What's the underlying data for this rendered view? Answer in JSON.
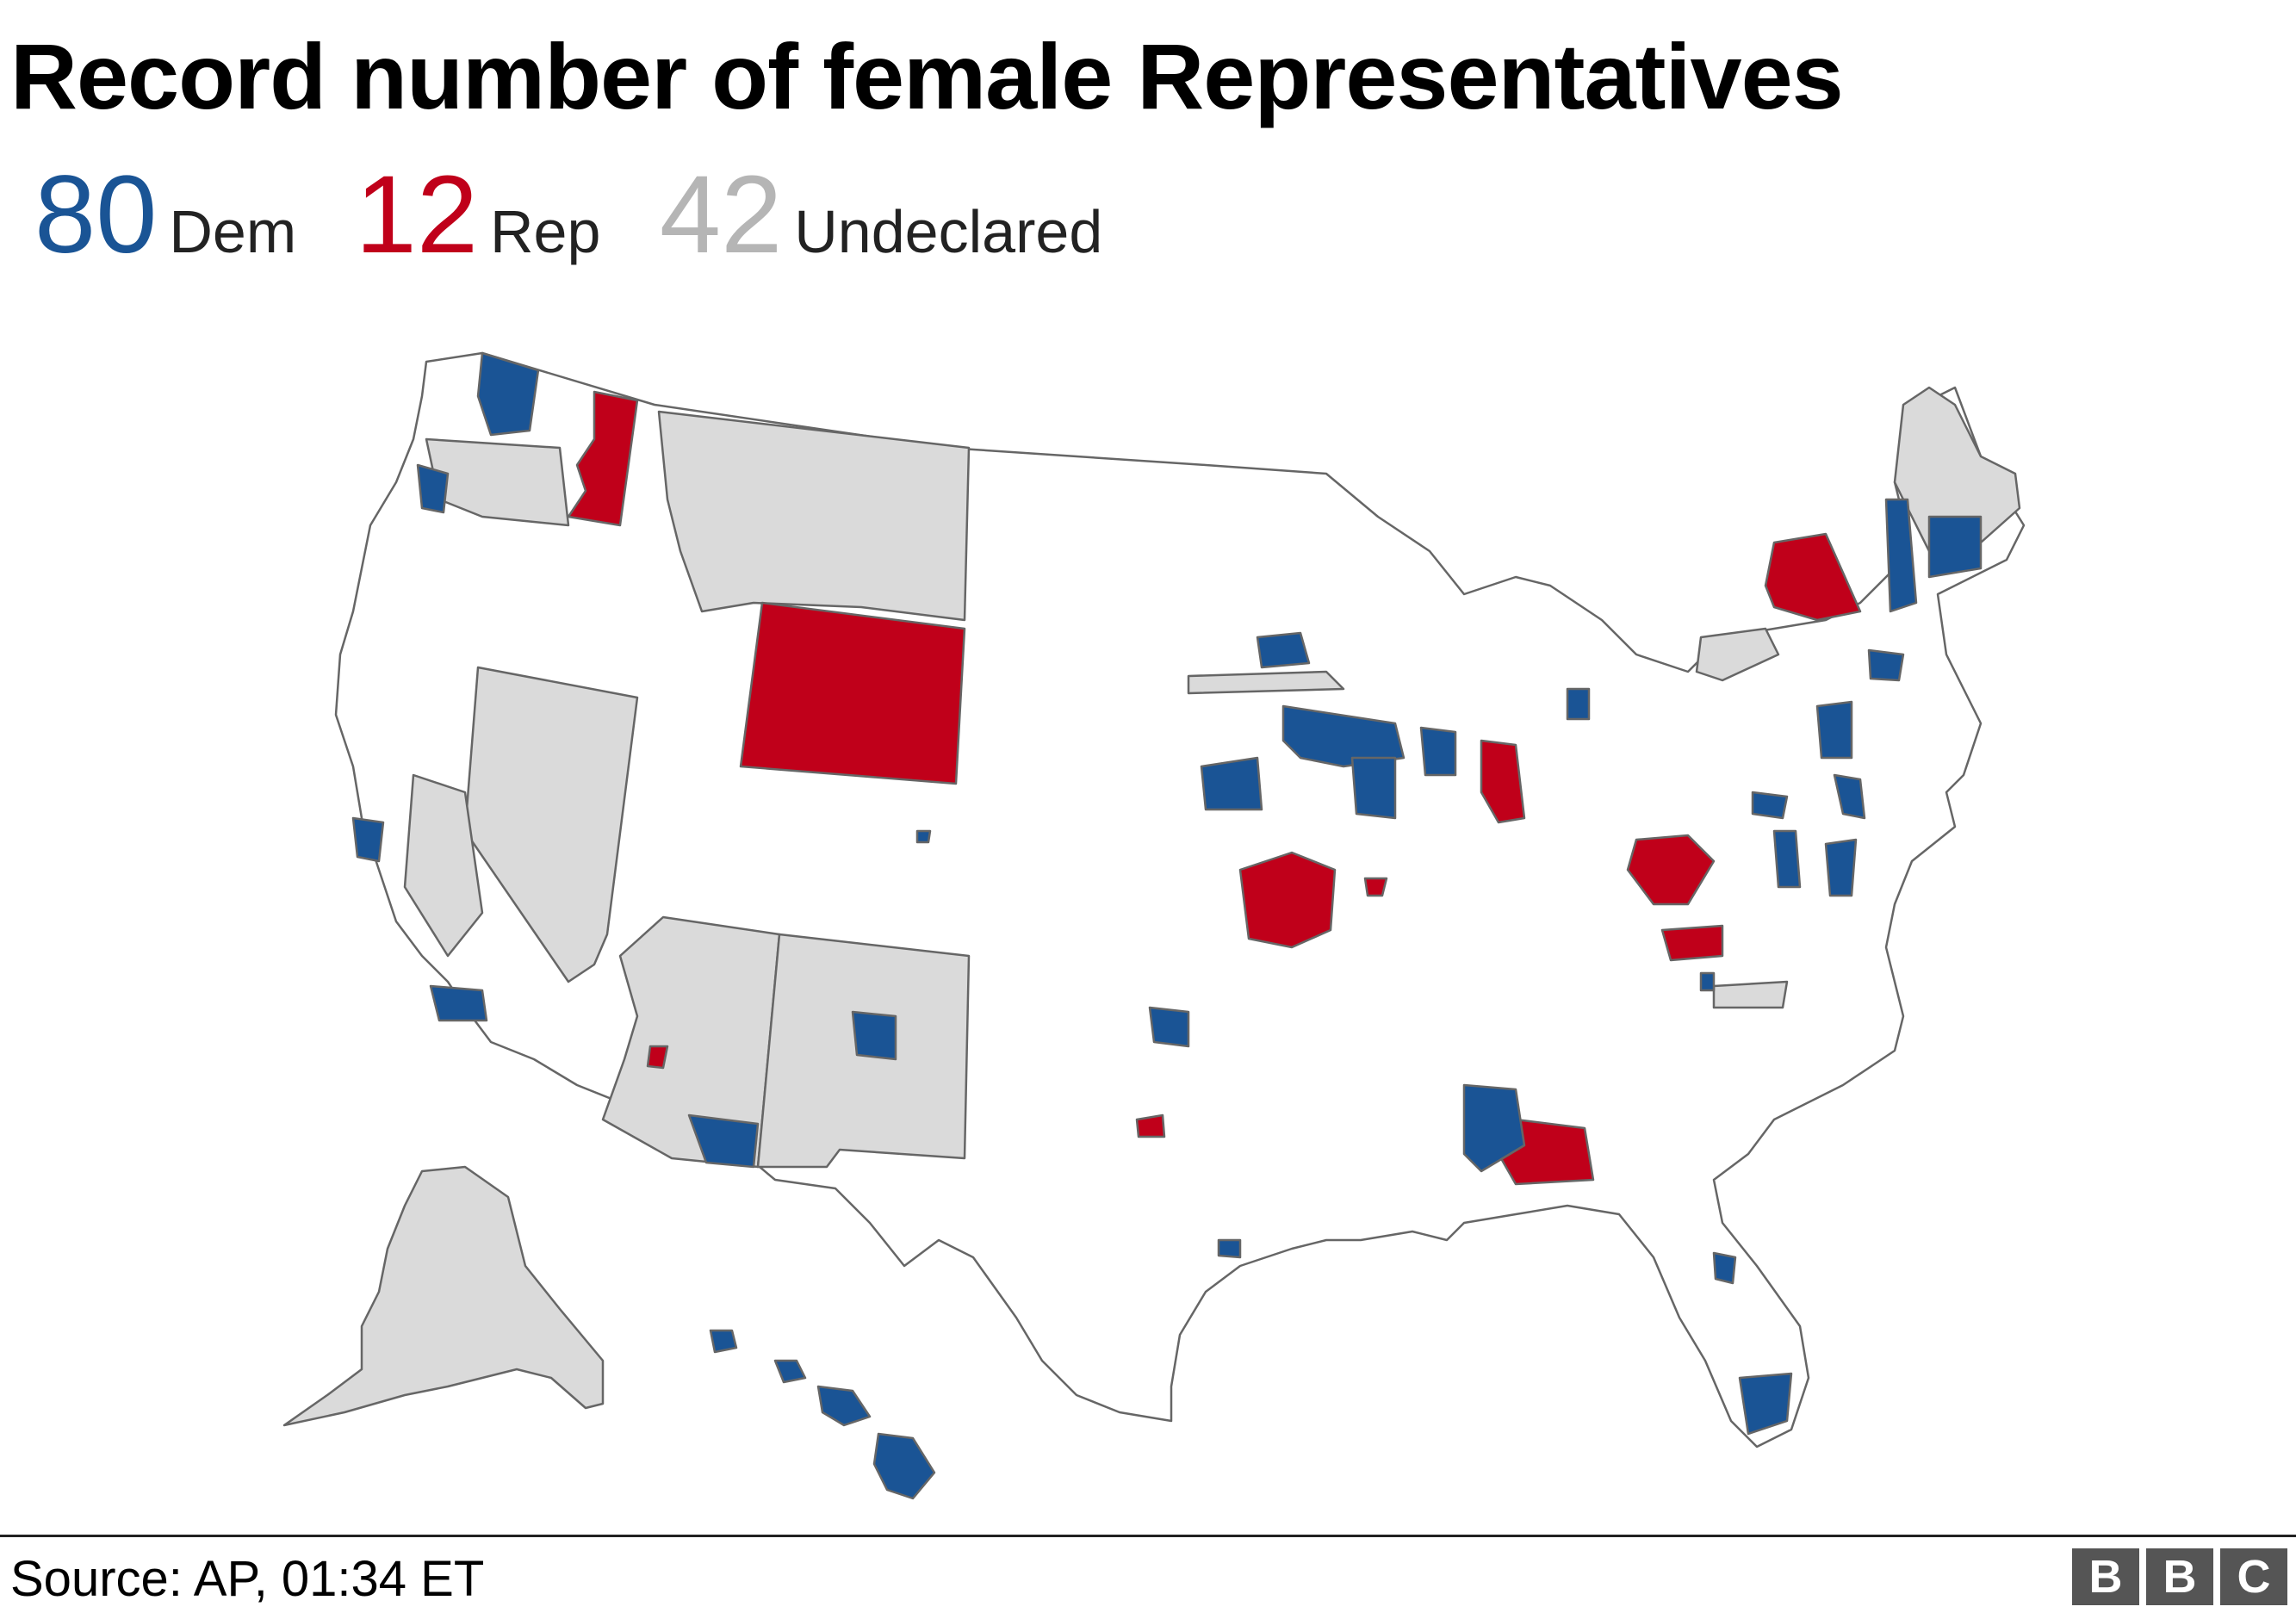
{
  "title": "Record number of female Representatives",
  "legend": [
    {
      "value": "80",
      "label": "Dem",
      "color": "#1a5495"
    },
    {
      "value": "12",
      "label": "Rep",
      "color": "#c0001a"
    },
    {
      "value": "42",
      "label": "Undeclared",
      "color": "#b5b5b5"
    }
  ],
  "colors": {
    "dem": "#1a5495",
    "rep": "#c0001a",
    "undeclared": "#dadada",
    "none": "#ffffff",
    "border": "#666666"
  },
  "source": "Source: AP, 01:34 ET",
  "logo": [
    "B",
    "B",
    "C"
  ]
}
